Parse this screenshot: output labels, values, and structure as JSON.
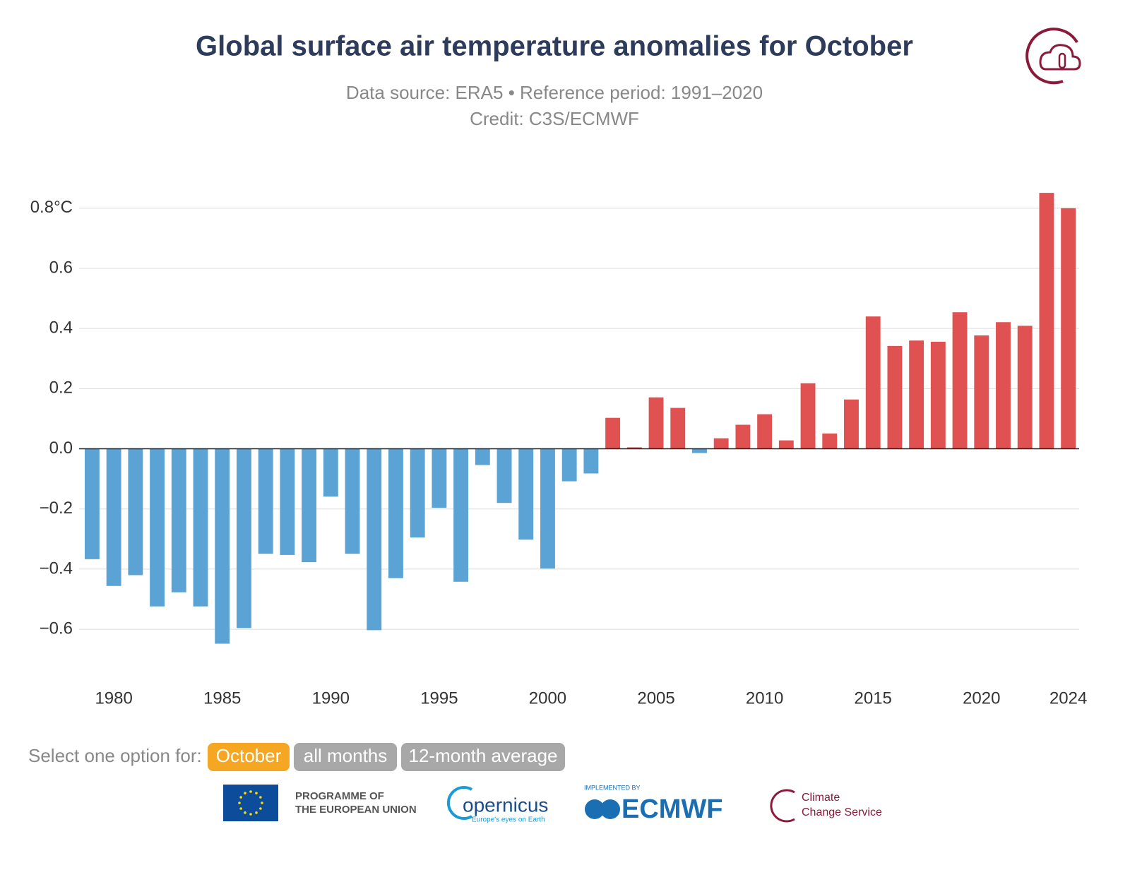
{
  "chart_data": {
    "type": "bar",
    "title": "Global surface air temperature anomalies for October",
    "subtitle": "Data source: ERA5 • Reference period: 1991–2020",
    "credit": "Credit: C3S/ECMWF",
    "x": [
      1979,
      1980,
      1981,
      1982,
      1983,
      1984,
      1985,
      1986,
      1987,
      1988,
      1989,
      1990,
      1991,
      1992,
      1993,
      1994,
      1995,
      1996,
      1997,
      1998,
      1999,
      2000,
      2001,
      2002,
      2003,
      2004,
      2005,
      2006,
      2007,
      2008,
      2009,
      2010,
      2011,
      2012,
      2013,
      2014,
      2015,
      2016,
      2017,
      2018,
      2019,
      2020,
      2021,
      2022,
      2023,
      2024
    ],
    "values": [
      -0.367,
      -0.456,
      -0.42,
      -0.524,
      -0.477,
      -0.524,
      -0.648,
      -0.596,
      -0.349,
      -0.353,
      -0.377,
      -0.159,
      -0.349,
      -0.603,
      -0.43,
      -0.295,
      -0.196,
      -0.442,
      -0.054,
      -0.18,
      -0.302,
      -0.398,
      -0.108,
      -0.082,
      0.103,
      0.005,
      0.171,
      0.136,
      -0.014,
      0.035,
      0.08,
      0.115,
      0.028,
      0.218,
      0.051,
      0.164,
      0.44,
      0.342,
      0.36,
      0.356,
      0.454,
      0.377,
      0.421,
      0.409,
      0.851,
      0.8
    ],
    "negative_color": "#5ba3d4",
    "positive_color": "#e05252",
    "xlim": [
      1978.4,
      2024.5
    ],
    "xticks": [
      1980,
      1985,
      1990,
      1995,
      2000,
      2005,
      2010,
      2015,
      2020,
      2024
    ],
    "ylim": [
      -0.75,
      0.87
    ],
    "yticks": [
      {
        "value": -0.6,
        "label": "−0.6"
      },
      {
        "value": -0.4,
        "label": "−0.4"
      },
      {
        "value": -0.2,
        "label": "−0.2"
      },
      {
        "value": 0,
        "label": "0.0"
      },
      0.2,
      0.4,
      0.6,
      {
        "value": 0.8,
        "label": "0.8°C"
      }
    ],
    "grid": true
  },
  "controls": {
    "prompt": "Select one option for:",
    "options": [
      "October",
      "all months",
      "12-month average"
    ]
  },
  "footer": {
    "eu": [
      "PROGRAMME OF",
      "THE EUROPEAN UNION"
    ],
    "copernicus": "opernicus",
    "copernicus_tagline": "Europe's eyes on Earth",
    "implemented_by": "IMPLEMENTED BY",
    "ecmwf": "ECMWF",
    "c3s": [
      "Climate",
      "Change Service"
    ]
  }
}
